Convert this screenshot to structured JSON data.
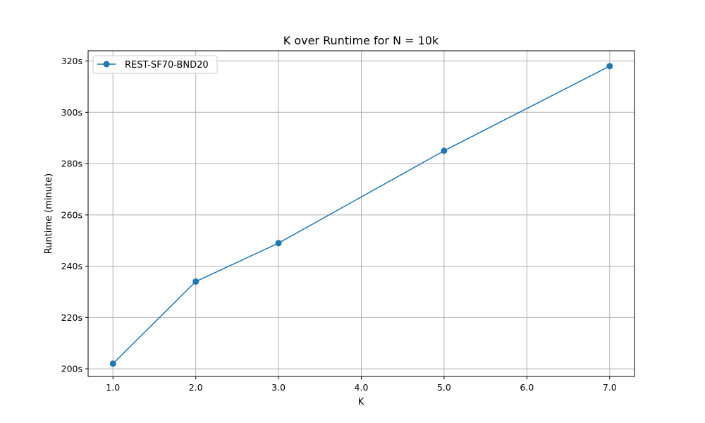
{
  "chart_data": {
    "type": "line",
    "title": "K over Runtime for N = 10k",
    "xlabel": "K",
    "ylabel": "Runtime (minute)",
    "xlim": [
      0.7,
      7.3
    ],
    "ylim": [
      197,
      324
    ],
    "x_ticks": [
      1.0,
      2.0,
      3.0,
      4.0,
      5.0,
      6.0,
      7.0
    ],
    "x_tick_labels": [
      "1.0",
      "2.0",
      "3.0",
      "4.0",
      "5.0",
      "6.0",
      "7.0"
    ],
    "y_ticks": [
      200,
      220,
      240,
      260,
      280,
      300,
      320
    ],
    "y_tick_labels": [
      "200s",
      "220s",
      "240s",
      "260s",
      "280s",
      "300s",
      "320s"
    ],
    "grid": true,
    "legend_position": "top-left",
    "series": [
      {
        "name": "REST-SF70-BND20",
        "color": "#1f77b4",
        "marker": "circle",
        "x": [
          1,
          2,
          3,
          5,
          7
        ],
        "y": [
          202,
          234,
          249,
          285,
          318
        ]
      }
    ]
  }
}
